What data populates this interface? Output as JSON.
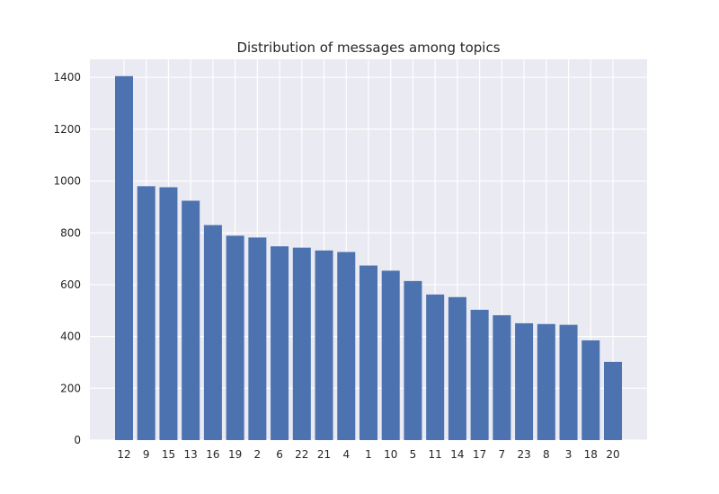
{
  "chart_data": {
    "type": "bar",
    "title": "Distribution of messages among topics",
    "xlabel": "",
    "ylabel": "",
    "categories": [
      "12",
      "9",
      "15",
      "13",
      "16",
      "19",
      "2",
      "6",
      "22",
      "21",
      "4",
      "1",
      "10",
      "5",
      "11",
      "14",
      "17",
      "7",
      "23",
      "8",
      "3",
      "18",
      "20"
    ],
    "values": [
      1405,
      980,
      976,
      924,
      830,
      789,
      782,
      748,
      743,
      732,
      726,
      674,
      654,
      614,
      562,
      552,
      503,
      482,
      451,
      448,
      445,
      385,
      302
    ],
    "ylim": [
      0,
      1470
    ],
    "yticks": [
      0,
      200,
      400,
      600,
      800,
      1000,
      1200,
      1400
    ],
    "grid": true,
    "colors": {
      "bar": "#4c72b0",
      "plot_background": "#eaeaf2",
      "grid": "#ffffff",
      "text": "#262626"
    }
  }
}
